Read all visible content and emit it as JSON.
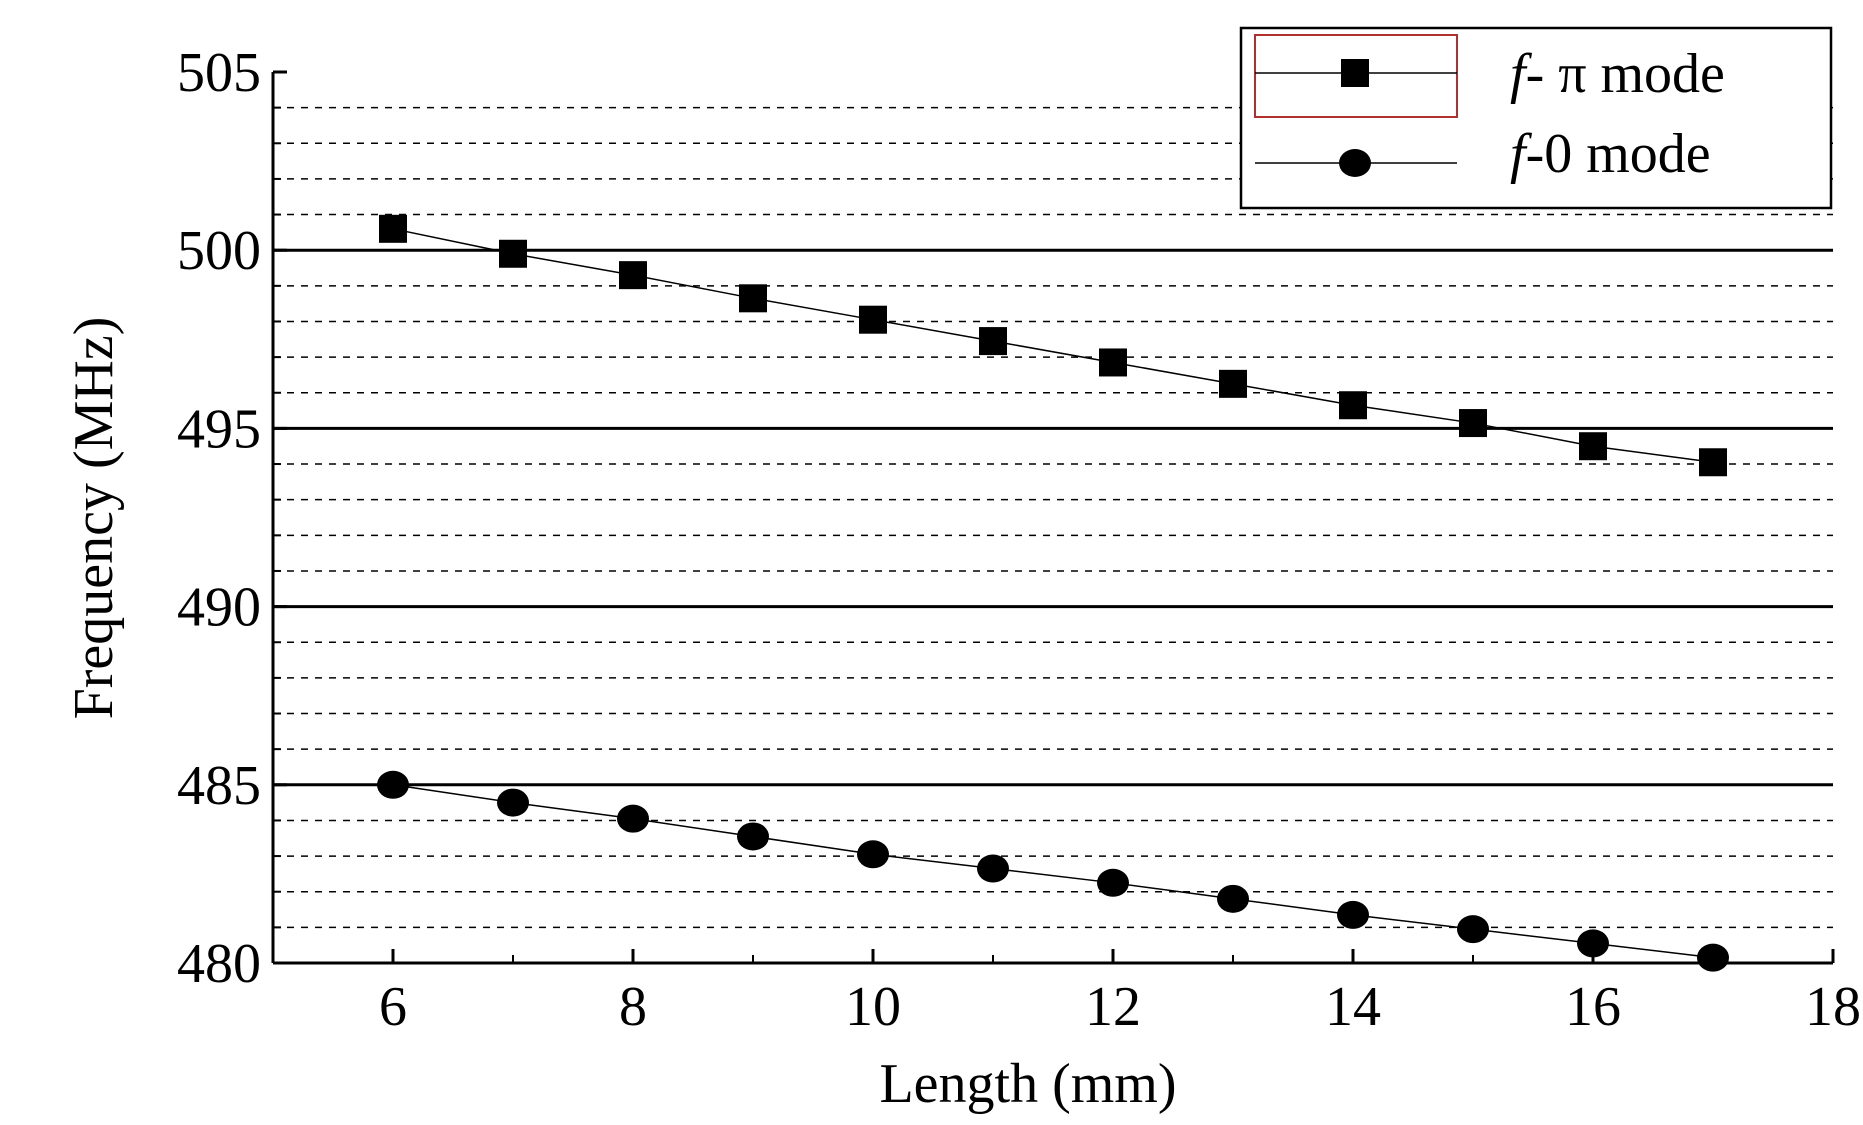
{
  "chart_data": {
    "type": "line",
    "xlabel": "Length (mm)",
    "ylabel": "Frequency (MHz)",
    "xlim": [
      5,
      18
    ],
    "ylim": [
      480,
      505
    ],
    "xticks": [
      6,
      8,
      10,
      12,
      14,
      16,
      18
    ],
    "yticks": [
      480,
      485,
      490,
      495,
      500,
      505
    ],
    "grid": {
      "major_y": [
        485,
        490,
        495,
        500
      ],
      "minor_y_dashed": [
        481,
        482,
        483,
        484,
        486,
        487,
        488,
        489,
        491,
        492,
        493,
        494,
        496,
        497,
        498,
        499,
        501,
        502,
        503,
        504
      ]
    },
    "legend_position": "top-right",
    "x": [
      6,
      7,
      8,
      9,
      10,
      11,
      12,
      13,
      14,
      15,
      16,
      17
    ],
    "series": [
      {
        "name": "f- π mode",
        "name_italic": "f",
        "name_rest": "- π  mode",
        "marker": "square",
        "color": "#000000",
        "values": [
          500.6,
          499.9,
          499.3,
          498.65,
          498.05,
          497.45,
          496.85,
          496.25,
          495.65,
          495.15,
          494.5,
          494.05
        ]
      },
      {
        "name": "f-0 mode",
        "name_italic": "f",
        "name_rest": "-0 mode",
        "marker": "circle",
        "color": "#000000",
        "values": [
          485.0,
          484.5,
          484.05,
          483.55,
          483.05,
          482.65,
          482.25,
          481.8,
          481.35,
          480.95,
          480.55,
          480.15
        ]
      }
    ]
  }
}
